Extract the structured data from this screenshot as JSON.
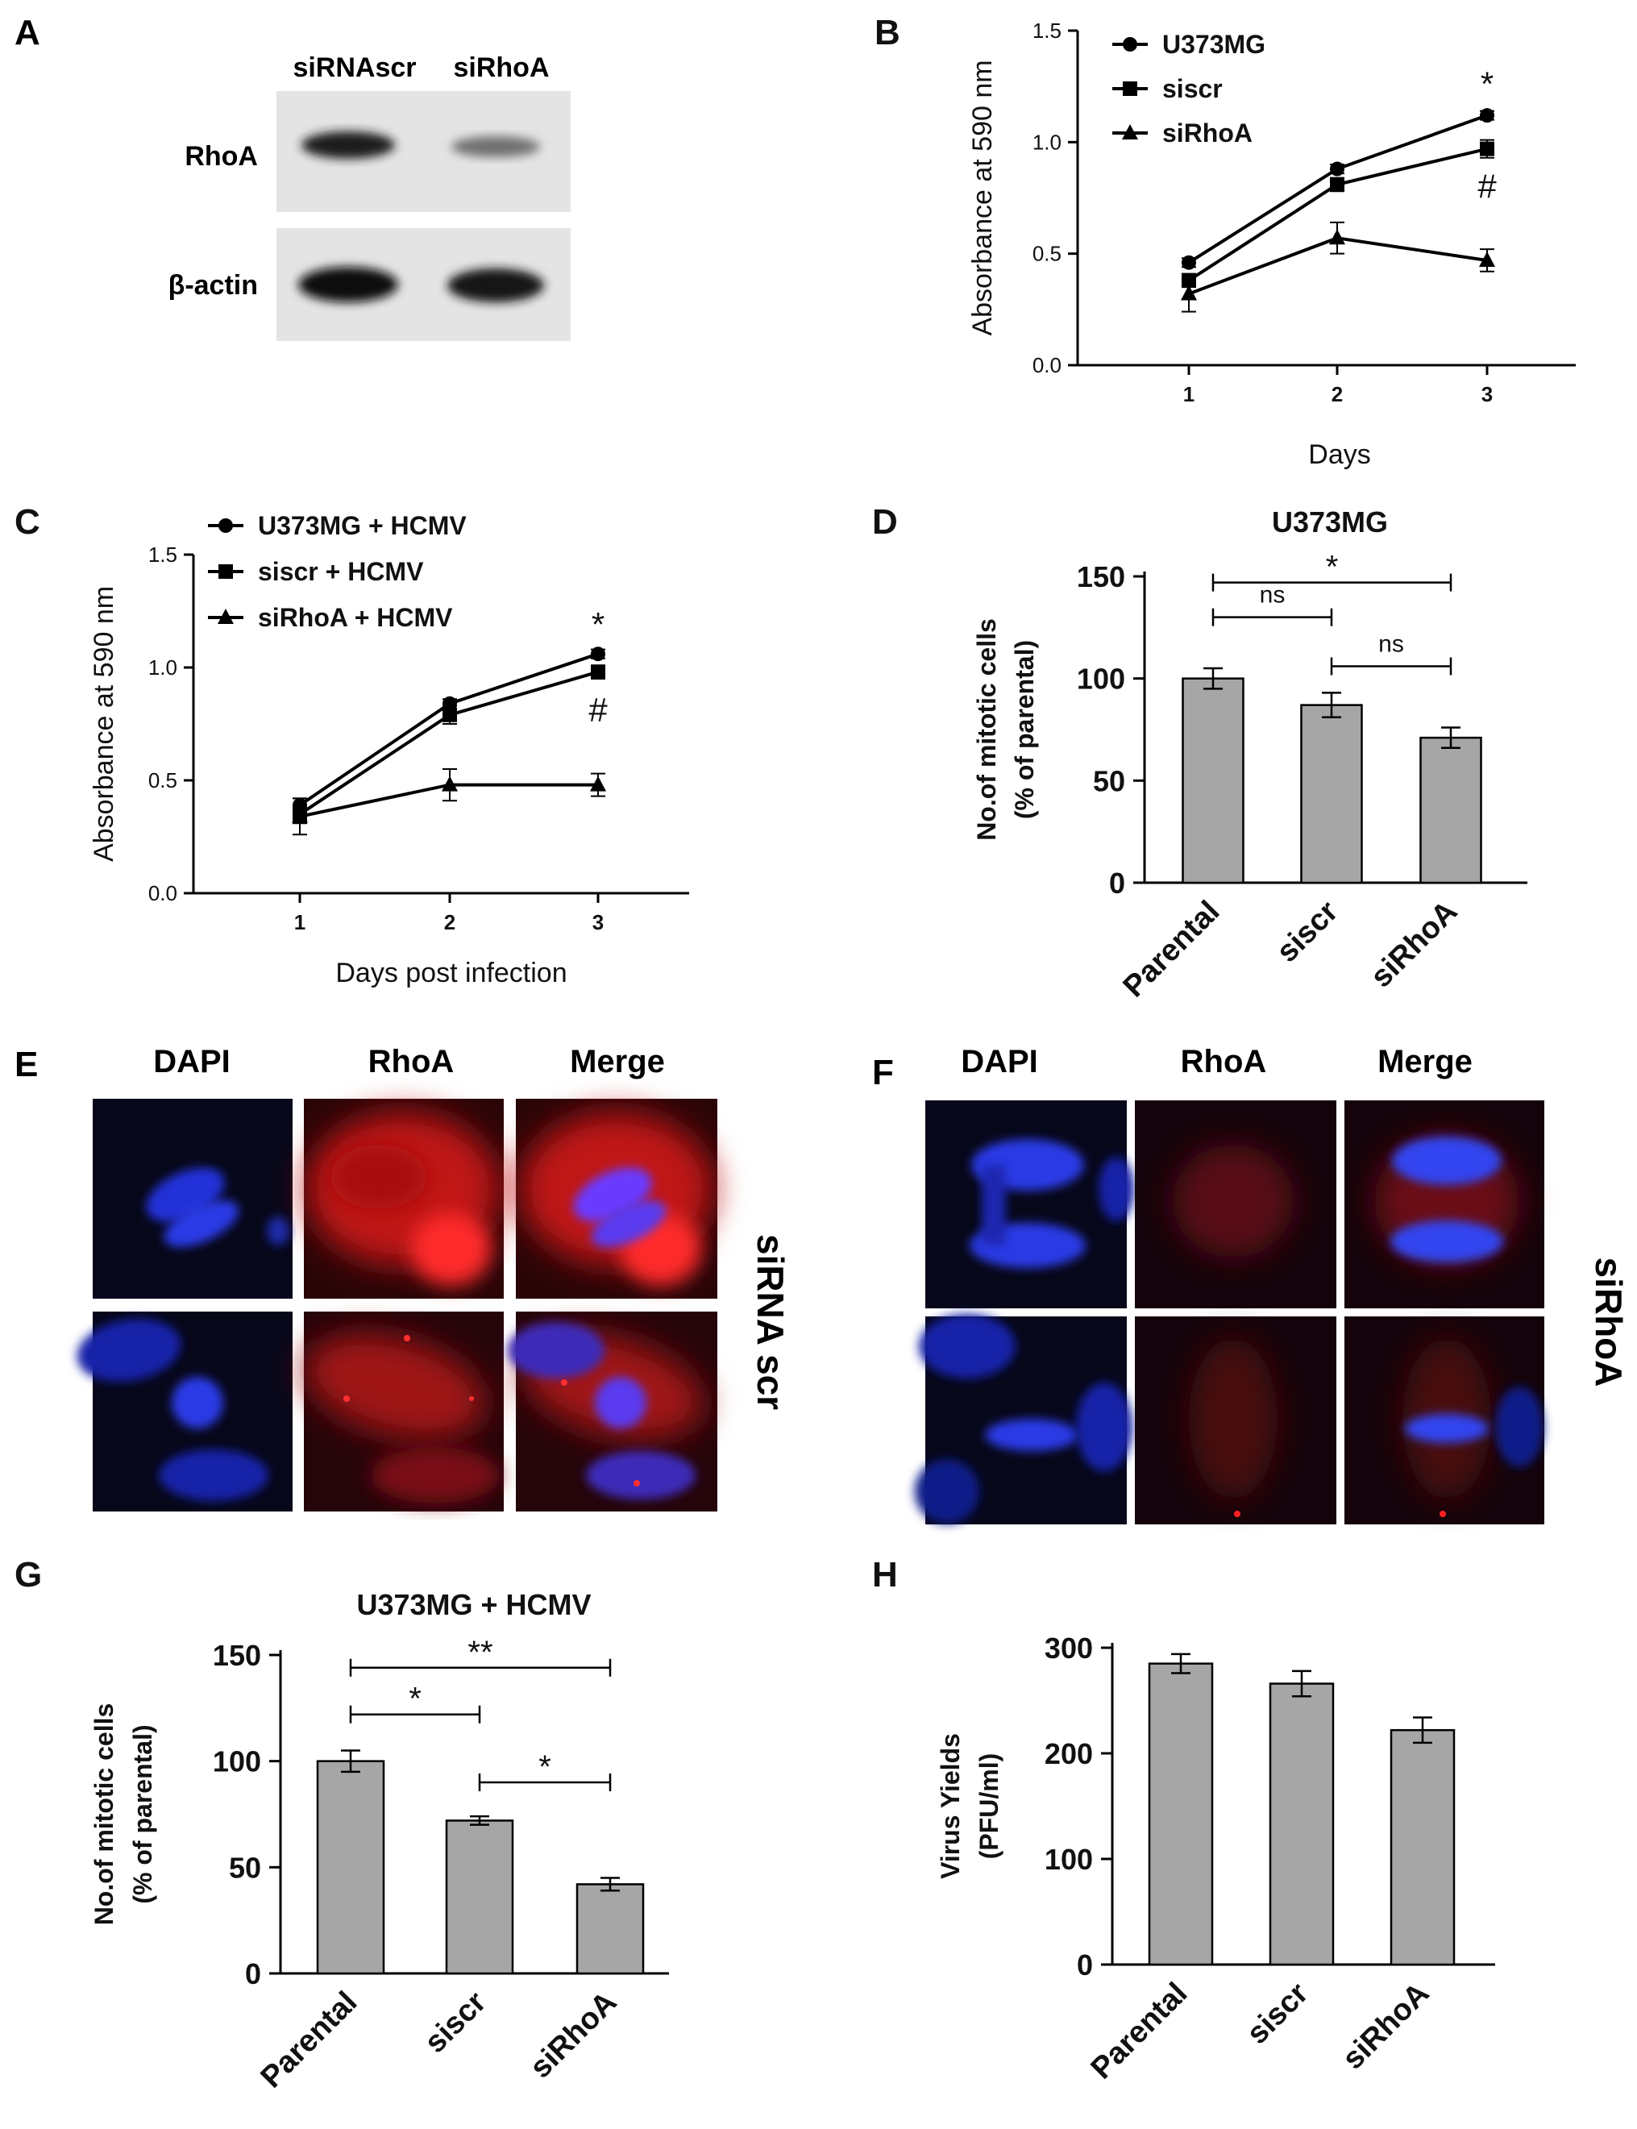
{
  "panels": {
    "A": {
      "letter": "A",
      "lanes": [
        "siRNAscr",
        "siRhoA"
      ],
      "rows": [
        "RhoA",
        "β-actin"
      ]
    },
    "E": {
      "letter": "E",
      "columns": [
        "DAPI",
        "RhoA",
        "Merge"
      ],
      "side_label": "siRNA scr"
    },
    "F": {
      "letter": "F",
      "columns": [
        "DAPI",
        "RhoA",
        "Merge"
      ],
      "side_label": "siRhoA"
    }
  },
  "colors": {
    "bar_fill": "#a6a6a6",
    "axis": "#000000",
    "dapi": "#2a3de0",
    "rhoa": "#d01818",
    "background_dark": "#070612"
  },
  "chart_data": [
    {
      "id": "B",
      "letter": "B",
      "type": "line",
      "title": "",
      "xlabel": "Days",
      "ylabel": "Absorbance at 590 nm",
      "x": [
        1,
        2,
        3
      ],
      "xticks": [
        "1",
        "2",
        "3"
      ],
      "ylim": [
        0,
        1.5
      ],
      "yticks": [
        "0.0",
        "0.5",
        "1.0",
        "1.5"
      ],
      "legend": "top-left",
      "series": [
        {
          "name": "U373MG",
          "marker": "circle",
          "values": [
            0.46,
            0.88,
            1.12
          ],
          "err": [
            0.02,
            0.02,
            0.02
          ]
        },
        {
          "name": "siscr",
          "marker": "square",
          "values": [
            0.38,
            0.81,
            0.97
          ],
          "err": [
            0.03,
            0.03,
            0.04
          ]
        },
        {
          "name": "siRhoA",
          "marker": "triangle",
          "values": [
            0.32,
            0.57,
            0.47
          ],
          "err": [
            0.08,
            0.07,
            0.05
          ]
        }
      ],
      "annotations": [
        {
          "text": "*",
          "x": 3,
          "y": 1.26
        },
        {
          "text": "#",
          "x": 3,
          "y": 0.8
        }
      ]
    },
    {
      "id": "C",
      "letter": "C",
      "type": "line",
      "title": "",
      "xlabel": "Days post infection",
      "ylabel": "Absorbance at 590 nm",
      "x": [
        1,
        2,
        3
      ],
      "xticks": [
        "1",
        "2",
        "3"
      ],
      "ylim": [
        0,
        1.5
      ],
      "yticks": [
        "0.0",
        "0.5",
        "1.0",
        "1.5"
      ],
      "legend": "top-left",
      "series": [
        {
          "name": "U373MG + HCMV",
          "marker": "circle",
          "values": [
            0.39,
            0.84,
            1.06
          ],
          "err": [
            0.03,
            0.02,
            0.02
          ]
        },
        {
          "name": "siscr + HCMV",
          "marker": "square",
          "values": [
            0.35,
            0.79,
            0.98
          ],
          "err": [
            0.04,
            0.04,
            0.03
          ]
        },
        {
          "name": "siRhoA + HCMV",
          "marker": "triangle",
          "values": [
            0.34,
            0.48,
            0.48
          ],
          "err": [
            0.08,
            0.07,
            0.05
          ]
        }
      ],
      "annotations": [
        {
          "text": "*",
          "x": 3,
          "y": 1.19
        },
        {
          "text": "#",
          "x": 3,
          "y": 0.81
        }
      ]
    },
    {
      "id": "D",
      "letter": "D",
      "type": "bar",
      "title": "U373MG",
      "xlabel": "",
      "ylabel": [
        "No.of mitotic cells",
        "(% of parental)"
      ],
      "categories": [
        "Parental",
        "siscr",
        "siRhoA"
      ],
      "values": [
        100,
        87,
        71
      ],
      "err": [
        5,
        6,
        5
      ],
      "ylim": [
        0,
        150
      ],
      "yticks": [
        "0",
        "50",
        "100",
        "150"
      ],
      "brackets": [
        {
          "from": 0,
          "to": 1,
          "level": 130,
          "label": "ns"
        },
        {
          "from": 1,
          "to": 2,
          "level": 106,
          "label": "ns"
        },
        {
          "from": 0,
          "to": 2,
          "level": 147,
          "label": "*"
        }
      ]
    },
    {
      "id": "G",
      "letter": "G",
      "type": "bar",
      "title": "U373MG + HCMV",
      "xlabel": "",
      "ylabel": [
        "No.of mitotic cells",
        "(% of parental)"
      ],
      "categories": [
        "Parental",
        "siscr",
        "siRhoA"
      ],
      "values": [
        100,
        72,
        42
      ],
      "err": [
        5,
        2,
        3
      ],
      "ylim": [
        0,
        150
      ],
      "yticks": [
        "0",
        "50",
        "100",
        "150"
      ],
      "brackets": [
        {
          "from": 0,
          "to": 1,
          "level": 122,
          "label": "*"
        },
        {
          "from": 1,
          "to": 2,
          "level": 90,
          "label": "*"
        },
        {
          "from": 0,
          "to": 2,
          "level": 144,
          "label": "**"
        }
      ]
    },
    {
      "id": "H",
      "letter": "H",
      "type": "bar",
      "title": "",
      "xlabel": "",
      "ylabel": [
        "Virus Yields",
        "(PFU/ml)"
      ],
      "categories": [
        "Parental",
        "siscr",
        "siRhoA"
      ],
      "values": [
        285,
        266,
        222
      ],
      "err": [
        9,
        12,
        12
      ],
      "ylim": [
        0,
        300
      ],
      "yticks": [
        "0",
        "100",
        "200",
        "300"
      ],
      "brackets": []
    }
  ]
}
